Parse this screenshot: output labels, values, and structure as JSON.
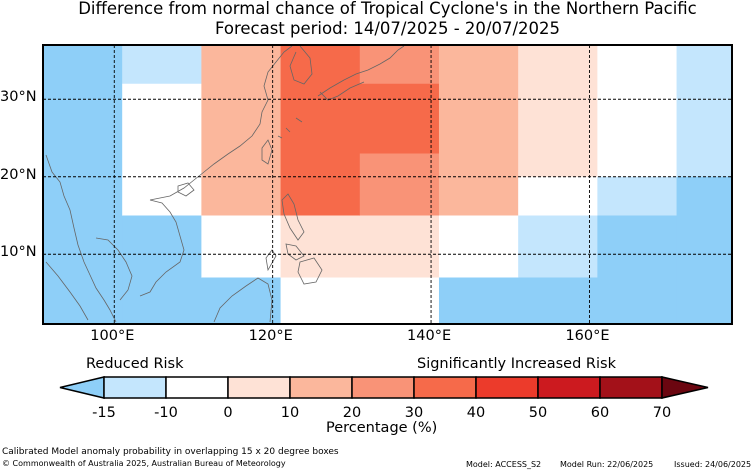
{
  "title": {
    "line1": "Difference from normal chance of Tropical Cyclone's in the Northern Pacific",
    "line2": "Forecast period: 14/07/2025 - 20/07/2025"
  },
  "map": {
    "lon_range": [
      91,
      178
    ],
    "lat_range": [
      1,
      37
    ],
    "lon_ticks": [
      {
        "lon": 100,
        "label": "100°E"
      },
      {
        "lon": 120,
        "label": "120°E"
      },
      {
        "lon": 140,
        "label": "140°E"
      },
      {
        "lon": 160,
        "label": "160°E"
      }
    ],
    "lat_ticks": [
      {
        "lat": 30,
        "label": "30°N"
      },
      {
        "lat": 20,
        "label": "20°N"
      },
      {
        "lat": 10,
        "label": "10°N"
      }
    ],
    "cells": [
      {
        "lon": [
          91,
          101
        ],
        "lat": [
          1,
          37
        ],
        "bin": 0
      },
      {
        "lon": [
          101,
          111
        ],
        "lat": [
          32,
          37
        ],
        "bin": 1
      },
      {
        "lon": [
          101,
          111
        ],
        "lat": [
          15,
          32
        ],
        "bin": 2
      },
      {
        "lon": [
          101,
          111
        ],
        "lat": [
          1,
          15
        ],
        "bin": 0
      },
      {
        "lon": [
          111,
          121
        ],
        "lat": [
          15,
          37
        ],
        "bin": 4
      },
      {
        "lon": [
          111,
          121
        ],
        "lat": [
          7,
          15
        ],
        "bin": 2
      },
      {
        "lon": [
          111,
          121
        ],
        "lat": [
          1,
          7
        ],
        "bin": 0
      },
      {
        "lon": [
          121,
          131
        ],
        "lat": [
          15,
          37
        ],
        "bin": 6
      },
      {
        "lon": [
          121,
          131
        ],
        "lat": [
          7,
          15
        ],
        "bin": 3
      },
      {
        "lon": [
          121,
          131
        ],
        "lat": [
          1,
          7
        ],
        "bin": 2
      },
      {
        "lon": [
          131,
          141
        ],
        "lat": [
          32,
          37
        ],
        "bin": 5
      },
      {
        "lon": [
          131,
          141
        ],
        "lat": [
          23,
          32
        ],
        "bin": 6
      },
      {
        "lon": [
          131,
          141
        ],
        "lat": [
          15,
          23
        ],
        "bin": 5
      },
      {
        "lon": [
          131,
          141
        ],
        "lat": [
          7,
          15
        ],
        "bin": 3
      },
      {
        "lon": [
          131,
          141
        ],
        "lat": [
          1,
          7
        ],
        "bin": 2
      },
      {
        "lon": [
          141,
          151
        ],
        "lat": [
          15,
          37
        ],
        "bin": 4
      },
      {
        "lon": [
          141,
          151
        ],
        "lat": [
          7,
          15
        ],
        "bin": 2
      },
      {
        "lon": [
          141,
          151
        ],
        "lat": [
          1,
          7
        ],
        "bin": 0
      },
      {
        "lon": [
          151,
          161
        ],
        "lat": [
          20,
          37
        ],
        "bin": 3
      },
      {
        "lon": [
          151,
          161
        ],
        "lat": [
          15,
          20
        ],
        "bin": 2
      },
      {
        "lon": [
          151,
          161
        ],
        "lat": [
          7,
          15
        ],
        "bin": 1
      },
      {
        "lon": [
          151,
          161
        ],
        "lat": [
          1,
          7
        ],
        "bin": 0
      },
      {
        "lon": [
          161,
          171
        ],
        "lat": [
          20,
          37
        ],
        "bin": 2
      },
      {
        "lon": [
          161,
          171
        ],
        "lat": [
          15,
          20
        ],
        "bin": 1
      },
      {
        "lon": [
          161,
          171
        ],
        "lat": [
          1,
          15
        ],
        "bin": 0
      },
      {
        "lon": [
          171,
          178
        ],
        "lat": [
          20,
          37
        ],
        "bin": 1
      },
      {
        "lon": [
          171,
          178
        ],
        "lat": [
          1,
          20
        ],
        "bin": 0
      }
    ]
  },
  "legend": {
    "left_label": "Reduced Risk",
    "right_label": "Significantly Increased Risk",
    "ticks": [
      "-15",
      "-10",
      "0",
      "10",
      "20",
      "30",
      "40",
      "50",
      "60",
      "70"
    ],
    "axis_label": "Percentage (%)",
    "colors": [
      "#8ecff8",
      "#c4e6fd",
      "#ffffff",
      "#fee2d6",
      "#fbb79c",
      "#f99377",
      "#f66a4a",
      "#ec3b2b",
      "#cc1a1f",
      "#a31119",
      "#6b0610"
    ]
  },
  "footer": {
    "note": "Calibrated Model anomaly probability in overlapping 15 x 20 degree boxes",
    "copyright": "© Commonwealth of Australia 2025, Australian Bureau of Meteorology",
    "model": "Model: ACCESS_S2",
    "model_run": "Model Run: 22/06/2025",
    "issued": "Issued: 24/06/2025"
  }
}
